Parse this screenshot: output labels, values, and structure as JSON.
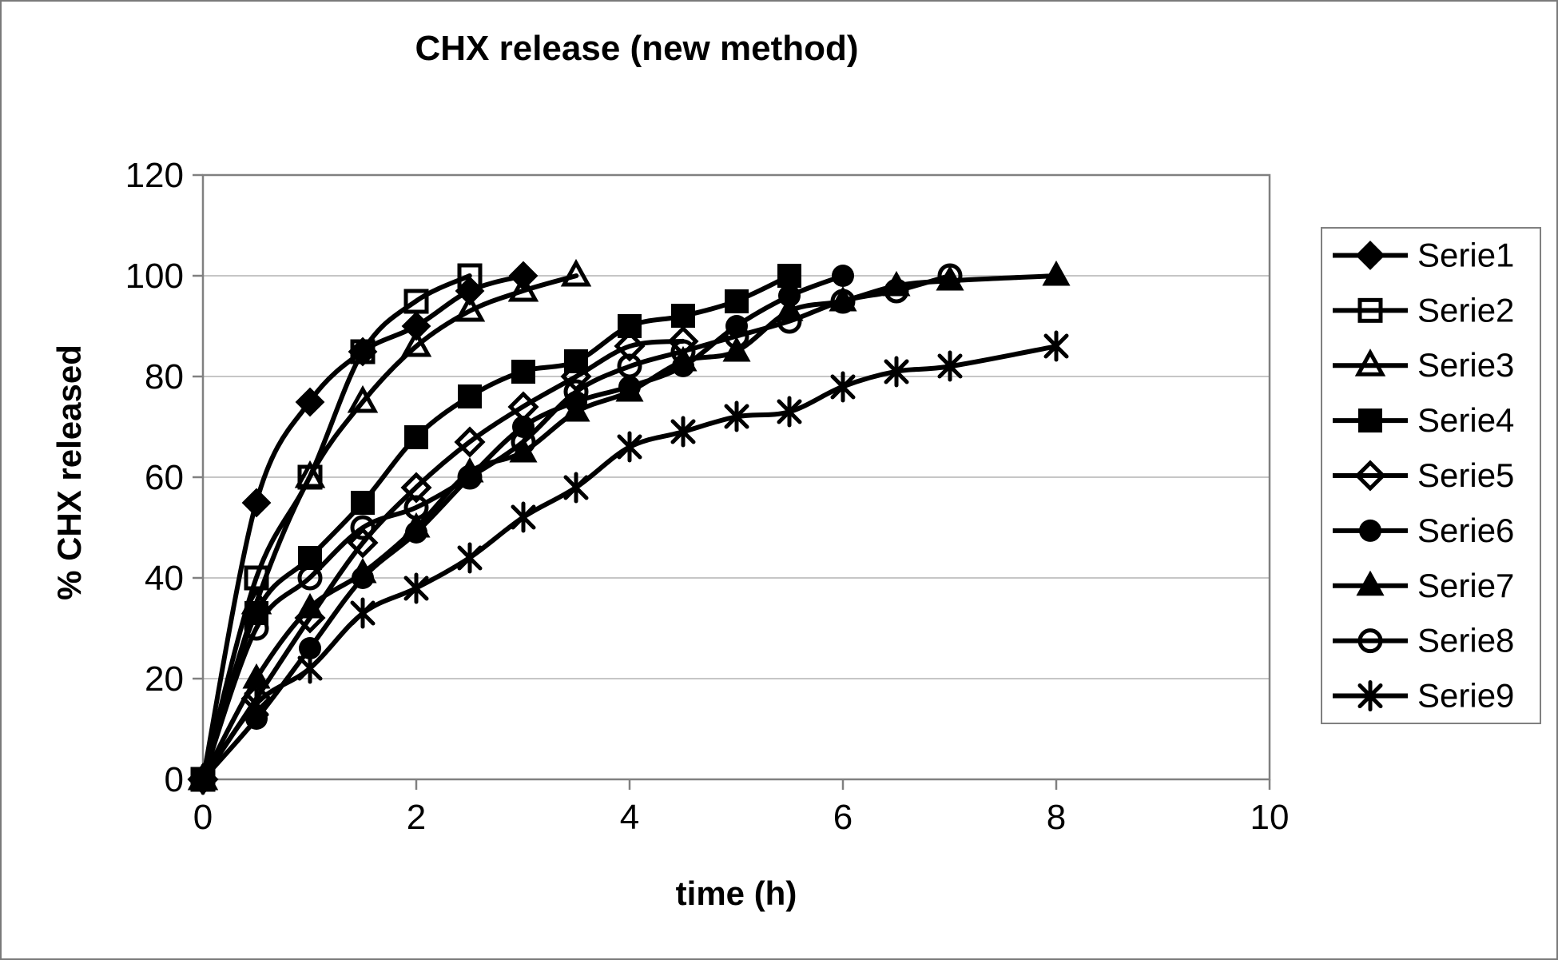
{
  "chart_data": {
    "type": "line",
    "title": "CHX release (new method)",
    "xlabel": "time (h)",
    "ylabel": "% CHX released",
    "xlim": [
      0,
      10
    ],
    "ylim": [
      0,
      120
    ],
    "xticks": [
      0,
      2,
      4,
      6,
      8,
      10
    ],
    "yticks": [
      0,
      20,
      40,
      60,
      80,
      100,
      120
    ],
    "grid": true,
    "legend_position": "right",
    "colors": {
      "series": "#000000",
      "grid": "#c6c6c6",
      "axis": "#808080",
      "background": "#ffffff"
    },
    "series": [
      {
        "name": "Serie1",
        "marker": "diamond-filled",
        "points": [
          [
            0,
            0
          ],
          [
            0.5,
            55
          ],
          [
            1,
            75
          ],
          [
            1.5,
            85
          ],
          [
            2,
            90
          ],
          [
            2.5,
            97
          ],
          [
            3,
            100
          ]
        ]
      },
      {
        "name": "Serie2",
        "marker": "square-open",
        "points": [
          [
            0,
            0
          ],
          [
            0.5,
            40
          ],
          [
            1,
            60
          ],
          [
            1.5,
            85
          ],
          [
            2,
            95
          ],
          [
            2.5,
            100
          ]
        ]
      },
      {
        "name": "Serie3",
        "marker": "triangle-open",
        "points": [
          [
            0,
            0
          ],
          [
            0.5,
            35
          ],
          [
            1,
            60
          ],
          [
            1.5,
            75
          ],
          [
            2,
            86
          ],
          [
            2.5,
            93
          ],
          [
            3,
            97
          ],
          [
            3.5,
            100
          ]
        ]
      },
      {
        "name": "Serie4",
        "marker": "square-filled",
        "points": [
          [
            0,
            0
          ],
          [
            0.5,
            33
          ],
          [
            1,
            44
          ],
          [
            1.5,
            55
          ],
          [
            2,
            68
          ],
          [
            2.5,
            76
          ],
          [
            3,
            81
          ],
          [
            3.5,
            83
          ],
          [
            4,
            90
          ],
          [
            4.5,
            92
          ],
          [
            5,
            95
          ],
          [
            5.5,
            100
          ]
        ]
      },
      {
        "name": "Serie5",
        "marker": "diamond-open",
        "points": [
          [
            0,
            0
          ],
          [
            0.5,
            16
          ],
          [
            1,
            32
          ],
          [
            1.5,
            47
          ],
          [
            2,
            58
          ],
          [
            2.5,
            67
          ],
          [
            3,
            74
          ],
          [
            3.5,
            80
          ],
          [
            4,
            86
          ],
          [
            4.5,
            87
          ]
        ]
      },
      {
        "name": "Serie6",
        "marker": "circle-filled",
        "points": [
          [
            0,
            0
          ],
          [
            0.5,
            12
          ],
          [
            1,
            26
          ],
          [
            1.5,
            40
          ],
          [
            2,
            49
          ],
          [
            2.5,
            60
          ],
          [
            3,
            70
          ],
          [
            3.5,
            75
          ],
          [
            4,
            78
          ],
          [
            4.5,
            82
          ],
          [
            5,
            90
          ],
          [
            5.5,
            96
          ],
          [
            6,
            100
          ]
        ]
      },
      {
        "name": "Serie7",
        "marker": "triangle-filled",
        "points": [
          [
            0,
            0
          ],
          [
            0.5,
            20
          ],
          [
            1,
            34
          ],
          [
            1.5,
            41
          ],
          [
            2,
            50
          ],
          [
            2.5,
            61
          ],
          [
            3,
            65
          ],
          [
            3.5,
            73
          ],
          [
            4,
            77
          ],
          [
            4.5,
            83
          ],
          [
            5,
            85
          ],
          [
            5.5,
            93
          ],
          [
            6,
            95
          ],
          [
            6.5,
            98
          ],
          [
            7,
            99
          ],
          [
            8,
            100
          ]
        ]
      },
      {
        "name": "Serie8",
        "marker": "circle-open",
        "points": [
          [
            0,
            0
          ],
          [
            0.5,
            30
          ],
          [
            1,
            40
          ],
          [
            1.5,
            50
          ],
          [
            2,
            54
          ],
          [
            2.5,
            60
          ],
          [
            3,
            67
          ],
          [
            3.5,
            77
          ],
          [
            4,
            82
          ],
          [
            4.5,
            85
          ],
          [
            5,
            88
          ],
          [
            5.5,
            91
          ],
          [
            6,
            95
          ],
          [
            6.5,
            97
          ],
          [
            7,
            100
          ]
        ]
      },
      {
        "name": "Serie9",
        "marker": "asterisk",
        "points": [
          [
            0,
            0
          ],
          [
            0.5,
            15
          ],
          [
            1,
            22
          ],
          [
            1.5,
            33
          ],
          [
            2,
            38
          ],
          [
            2.5,
            44
          ],
          [
            3,
            52
          ],
          [
            3.5,
            58
          ],
          [
            4,
            66
          ],
          [
            4.5,
            69
          ],
          [
            5,
            72
          ],
          [
            5.5,
            73
          ],
          [
            6,
            78
          ],
          [
            6.5,
            81
          ],
          [
            7,
            82
          ],
          [
            8,
            86
          ]
        ]
      }
    ]
  }
}
